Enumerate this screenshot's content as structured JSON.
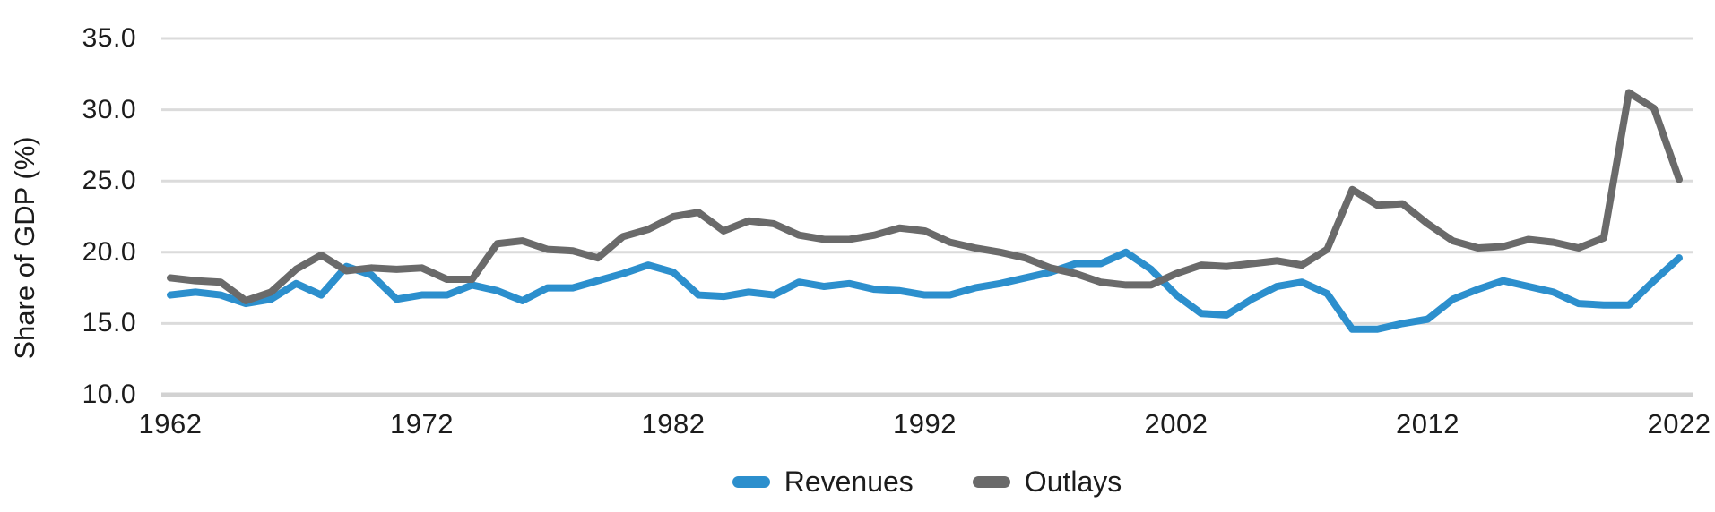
{
  "chart_data": {
    "type": "line",
    "title": "",
    "xlabel": "",
    "ylabel": "Share of GDP (%)",
    "ylim": [
      10.0,
      35.0
    ],
    "x_range": [
      1962,
      2022
    ],
    "grid": "horizontal",
    "legend_position": "bottom-center",
    "gridline_color": "#dbdbdb",
    "axis_line_color": "#d2d2d2",
    "text_color": "#1c1c1c",
    "yticks": [
      {
        "label": "35.0",
        "value": 35.0
      },
      {
        "label": "30.0",
        "value": 30.0
      },
      {
        "label": "25.0",
        "value": 25.0
      },
      {
        "label": "20.0",
        "value": 20.0
      },
      {
        "label": "15.0",
        "value": 15.0
      },
      {
        "label": "10.0",
        "value": 10.0
      }
    ],
    "xticks": [
      1962,
      1972,
      1982,
      1992,
      2002,
      2012,
      2022
    ],
    "x": [
      1962,
      1963,
      1964,
      1965,
      1966,
      1967,
      1968,
      1969,
      1970,
      1971,
      1972,
      1973,
      1974,
      1975,
      1976,
      1977,
      1978,
      1979,
      1980,
      1981,
      1982,
      1983,
      1984,
      1985,
      1986,
      1987,
      1988,
      1989,
      1990,
      1991,
      1992,
      1993,
      1994,
      1995,
      1996,
      1997,
      1998,
      1999,
      2000,
      2001,
      2002,
      2003,
      2004,
      2005,
      2006,
      2007,
      2008,
      2009,
      2010,
      2011,
      2012,
      2013,
      2014,
      2015,
      2016,
      2017,
      2018,
      2019,
      2020,
      2021,
      2022
    ],
    "series": [
      {
        "name": "Revenues",
        "color": "#2c8fcd",
        "values": [
          17.0,
          17.2,
          17.0,
          16.4,
          16.7,
          17.8,
          17.0,
          19.0,
          18.4,
          16.7,
          17.0,
          17.0,
          17.7,
          17.3,
          16.6,
          17.5,
          17.5,
          18.0,
          18.5,
          19.1,
          18.6,
          17.0,
          16.9,
          17.2,
          17.0,
          17.9,
          17.6,
          17.8,
          17.4,
          17.3,
          17.0,
          17.0,
          17.5,
          17.8,
          18.2,
          18.6,
          19.2,
          19.2,
          20.0,
          18.8,
          17.0,
          15.7,
          15.6,
          16.7,
          17.6,
          17.9,
          17.1,
          14.6,
          14.6,
          15.0,
          15.3,
          16.7,
          17.4,
          18.0,
          17.6,
          17.2,
          16.4,
          16.3,
          16.3,
          18.0,
          19.6
        ]
      },
      {
        "name": "Outlays",
        "color": "#6a6a6a",
        "values": [
          18.2,
          18.0,
          17.9,
          16.6,
          17.2,
          18.8,
          19.8,
          18.7,
          18.9,
          18.8,
          18.9,
          18.1,
          18.1,
          20.6,
          20.8,
          20.2,
          20.1,
          19.6,
          21.1,
          21.6,
          22.5,
          22.8,
          21.5,
          22.2,
          22.0,
          21.2,
          20.9,
          20.9,
          21.2,
          21.7,
          21.5,
          20.7,
          20.3,
          20.0,
          19.6,
          18.9,
          18.5,
          17.9,
          17.7,
          17.7,
          18.5,
          19.1,
          19.0,
          19.2,
          19.4,
          19.1,
          20.2,
          24.4,
          23.3,
          23.4,
          22.0,
          20.8,
          20.3,
          20.4,
          20.9,
          20.7,
          20.3,
          21.0,
          31.2,
          30.1,
          25.1
        ]
      }
    ]
  }
}
